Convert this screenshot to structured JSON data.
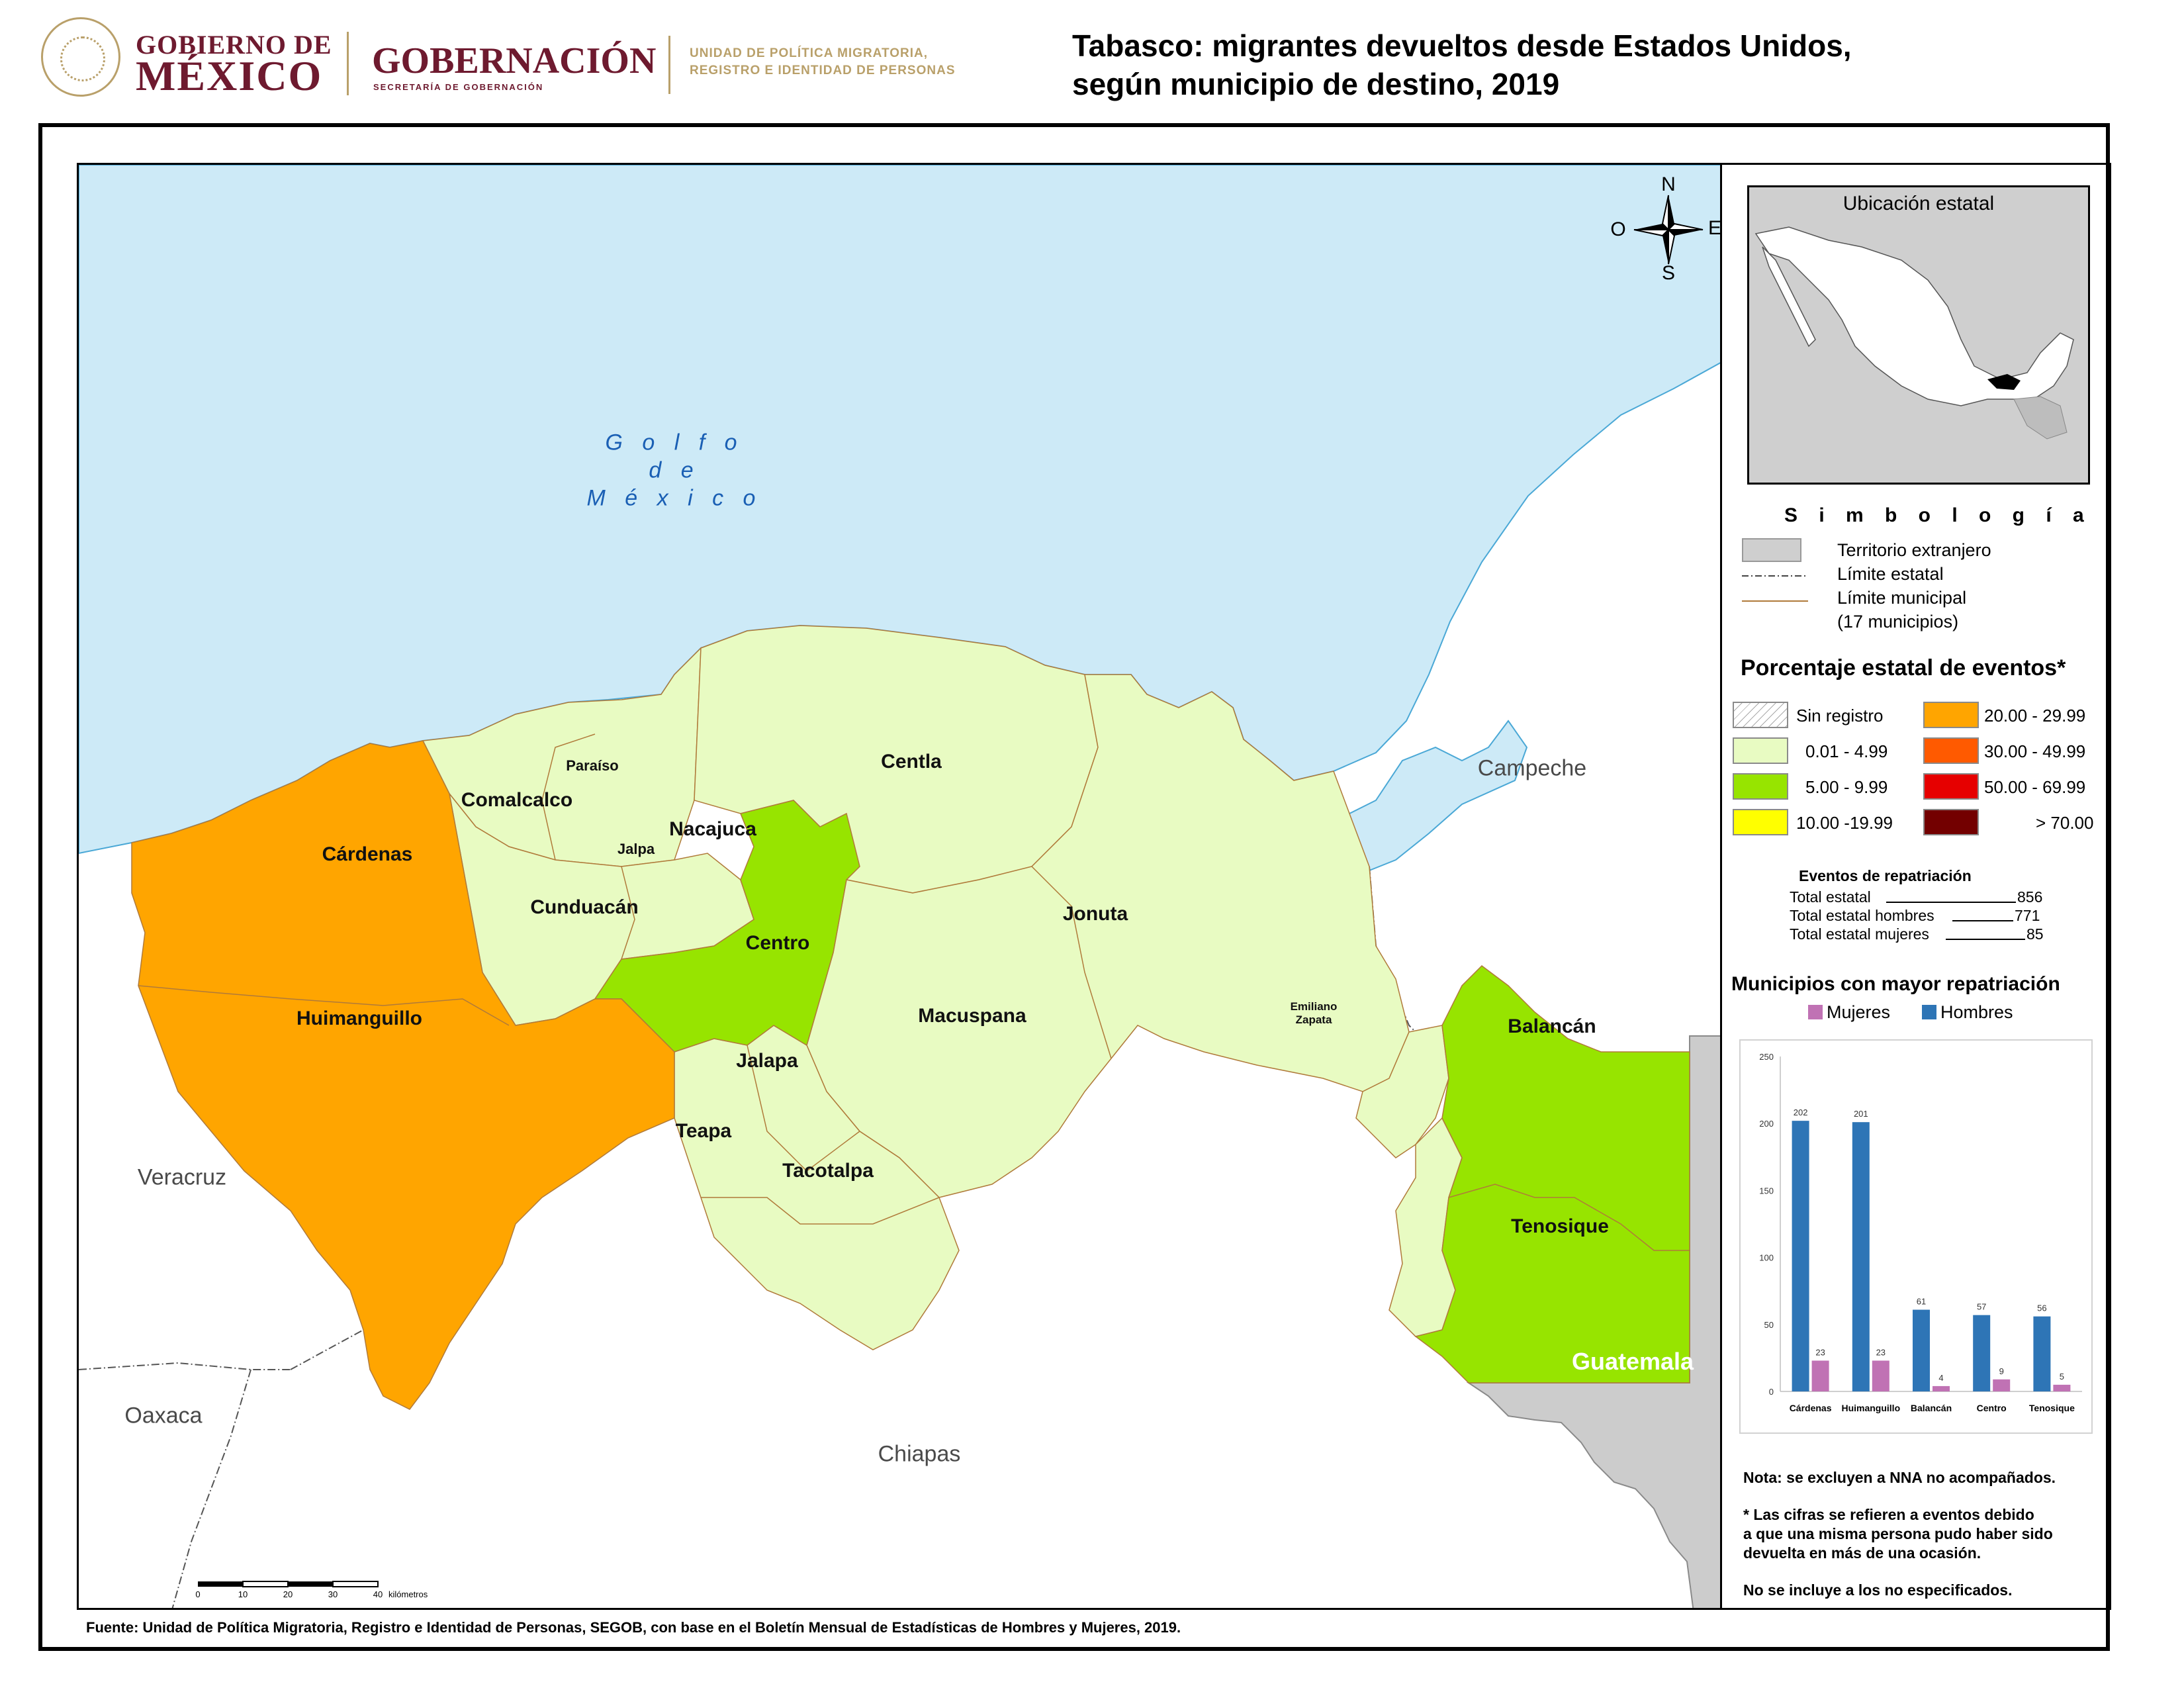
{
  "header": {
    "gob_line1": "GOBIERNO DE",
    "gob_line2": "MÉXICO",
    "gobernacion": "GOBERNACIÓN",
    "gobernacion_sub": "SECRETARÍA DE GOBERNACIÓN",
    "unidad_line1": "UNIDAD DE POLÍTICA MIGRATORIA,",
    "unidad_line2": "REGISTRO E IDENTIDAD DE PERSONAS",
    "title_line1": "Tabasco: migrantes devueltos desde Estados Unidos,",
    "title_line2": "según municipio de destino, 2019",
    "brand_color": "#6e1a2f",
    "gold_color": "#b9a06a"
  },
  "map": {
    "gulf": [
      "G o l f o",
      "d e",
      "M é x i c o"
    ],
    "states": {
      "veracruz": "Veracruz",
      "oaxaca": "Oaxaca",
      "chiapas": "Chiapas",
      "campeche": "Campeche",
      "guatemala": "Guatemala"
    },
    "compass": {
      "n": "N",
      "s": "S",
      "e": "E",
      "o": "O"
    },
    "scale": {
      "ticks": [
        "0",
        "10",
        "20",
        "30",
        "40"
      ],
      "unit": "kilómetros"
    },
    "municipalities": [
      {
        "name": "Paraíso",
        "class": "0.01 - 4.99"
      },
      {
        "name": "Comalcalco",
        "class": "0.01 - 4.99"
      },
      {
        "name": "Jalpa",
        "class": "0.01 - 4.99"
      },
      {
        "name": "Nacajuca",
        "class": "0.01 - 4.99"
      },
      {
        "name": "Centla",
        "class": "0.01 - 4.99"
      },
      {
        "name": "Cárdenas",
        "class": "20.00 - 29.99"
      },
      {
        "name": "Cunduacán",
        "class": "0.01 - 4.99"
      },
      {
        "name": "Centro",
        "class": "5.00 - 9.99"
      },
      {
        "name": "Jonuta",
        "class": "0.01 - 4.99"
      },
      {
        "name": "Huimanguillo",
        "class": "20.00 - 29.99"
      },
      {
        "name": "Macuspana",
        "class": "0.01 - 4.99"
      },
      {
        "name": "Jalapa",
        "class": "0.01 - 4.99"
      },
      {
        "name": "Balancán",
        "class": "5.00 - 9.99"
      },
      {
        "name": "Teapa",
        "class": "0.01 - 4.99"
      },
      {
        "name": "Tacotalpa",
        "class": "0.01 - 4.99"
      },
      {
        "name": "Tenosique",
        "class": "5.00 - 9.99"
      }
    ],
    "emiliano_zapata": [
      "Emiliano",
      "Zapata"
    ],
    "colors": {
      "sea": "#cdeaf7",
      "sea_border": "#4aa8d6",
      "foreign": "#cccccc",
      "cls_low": "#e8fbc2",
      "cls_5_10": "#97e400",
      "cls_20_30": "#ffa500",
      "muni_line": "#b07a3a"
    }
  },
  "inset": {
    "title": "Ubicación estatal"
  },
  "simbologia": {
    "title": "S i m b o l o g í a",
    "items": [
      "Territorio extranjero",
      "Límite estatal",
      "Límite municipal",
      "(17 municipios)"
    ]
  },
  "porcentaje": {
    "title": "Porcentaje estatal de eventos*",
    "classes": [
      {
        "label": "Sin registro",
        "color": "#ffffff"
      },
      {
        "label": "0.01  - 4.99",
        "color": "#e8fbc2"
      },
      {
        "label": "5.00  - 9.99",
        "color": "#97e400"
      },
      {
        "label": "10.00 -19.99",
        "color": "#ffff00"
      },
      {
        "label": "20.00 - 29.99",
        "color": "#ffa500"
      },
      {
        "label": "30.00 - 49.99",
        "color": "#ff5a00"
      },
      {
        "label": "50.00 - 69.99",
        "color": "#e60000"
      },
      {
        "label": "> 70.00",
        "color": "#730000"
      }
    ]
  },
  "eventos": {
    "title": "Eventos de repatriación",
    "rows": [
      {
        "label": "Total estatal",
        "value": "856"
      },
      {
        "label": "Total estatal hombres",
        "value": "771"
      },
      {
        "label": "Total estatal mujeres",
        "value": "85"
      }
    ]
  },
  "chart_data": {
    "type": "bar",
    "title": "Municipios con mayor repatriación",
    "categories": [
      "Cárdenas",
      "Huimanguillo",
      "Balancán",
      "Centro",
      "Tenosique"
    ],
    "series": [
      {
        "name": "Hombres",
        "color": "#2e75b6",
        "values": [
          202,
          201,
          61,
          57,
          56
        ]
      },
      {
        "name": "Mujeres",
        "color": "#c072b4",
        "values": [
          23,
          23,
          4,
          9,
          5
        ]
      }
    ],
    "legend_order": [
      "Mujeres",
      "Hombres"
    ],
    "ylim": [
      0,
      250
    ],
    "yticks": [
      "0",
      "50",
      "100",
      "150",
      "200",
      "250"
    ],
    "legend": "top",
    "grid": false
  },
  "notes": {
    "nota": "Nota: se excluyen a NNA no acompañados.",
    "cifras": [
      "* Las cifras se refieren a eventos debido",
      "a que una misma persona pudo haber sido",
      "devuelta en más de una ocasión."
    ],
    "no_especificados": "No se incluye a los no especificados."
  },
  "fuente": "Fuente: Unidad de Política Migratoria, Registro e Identidad de Personas, SEGOB, con base en el Boletín Mensual de Estadísticas de Hombres y Mujeres, 2019."
}
